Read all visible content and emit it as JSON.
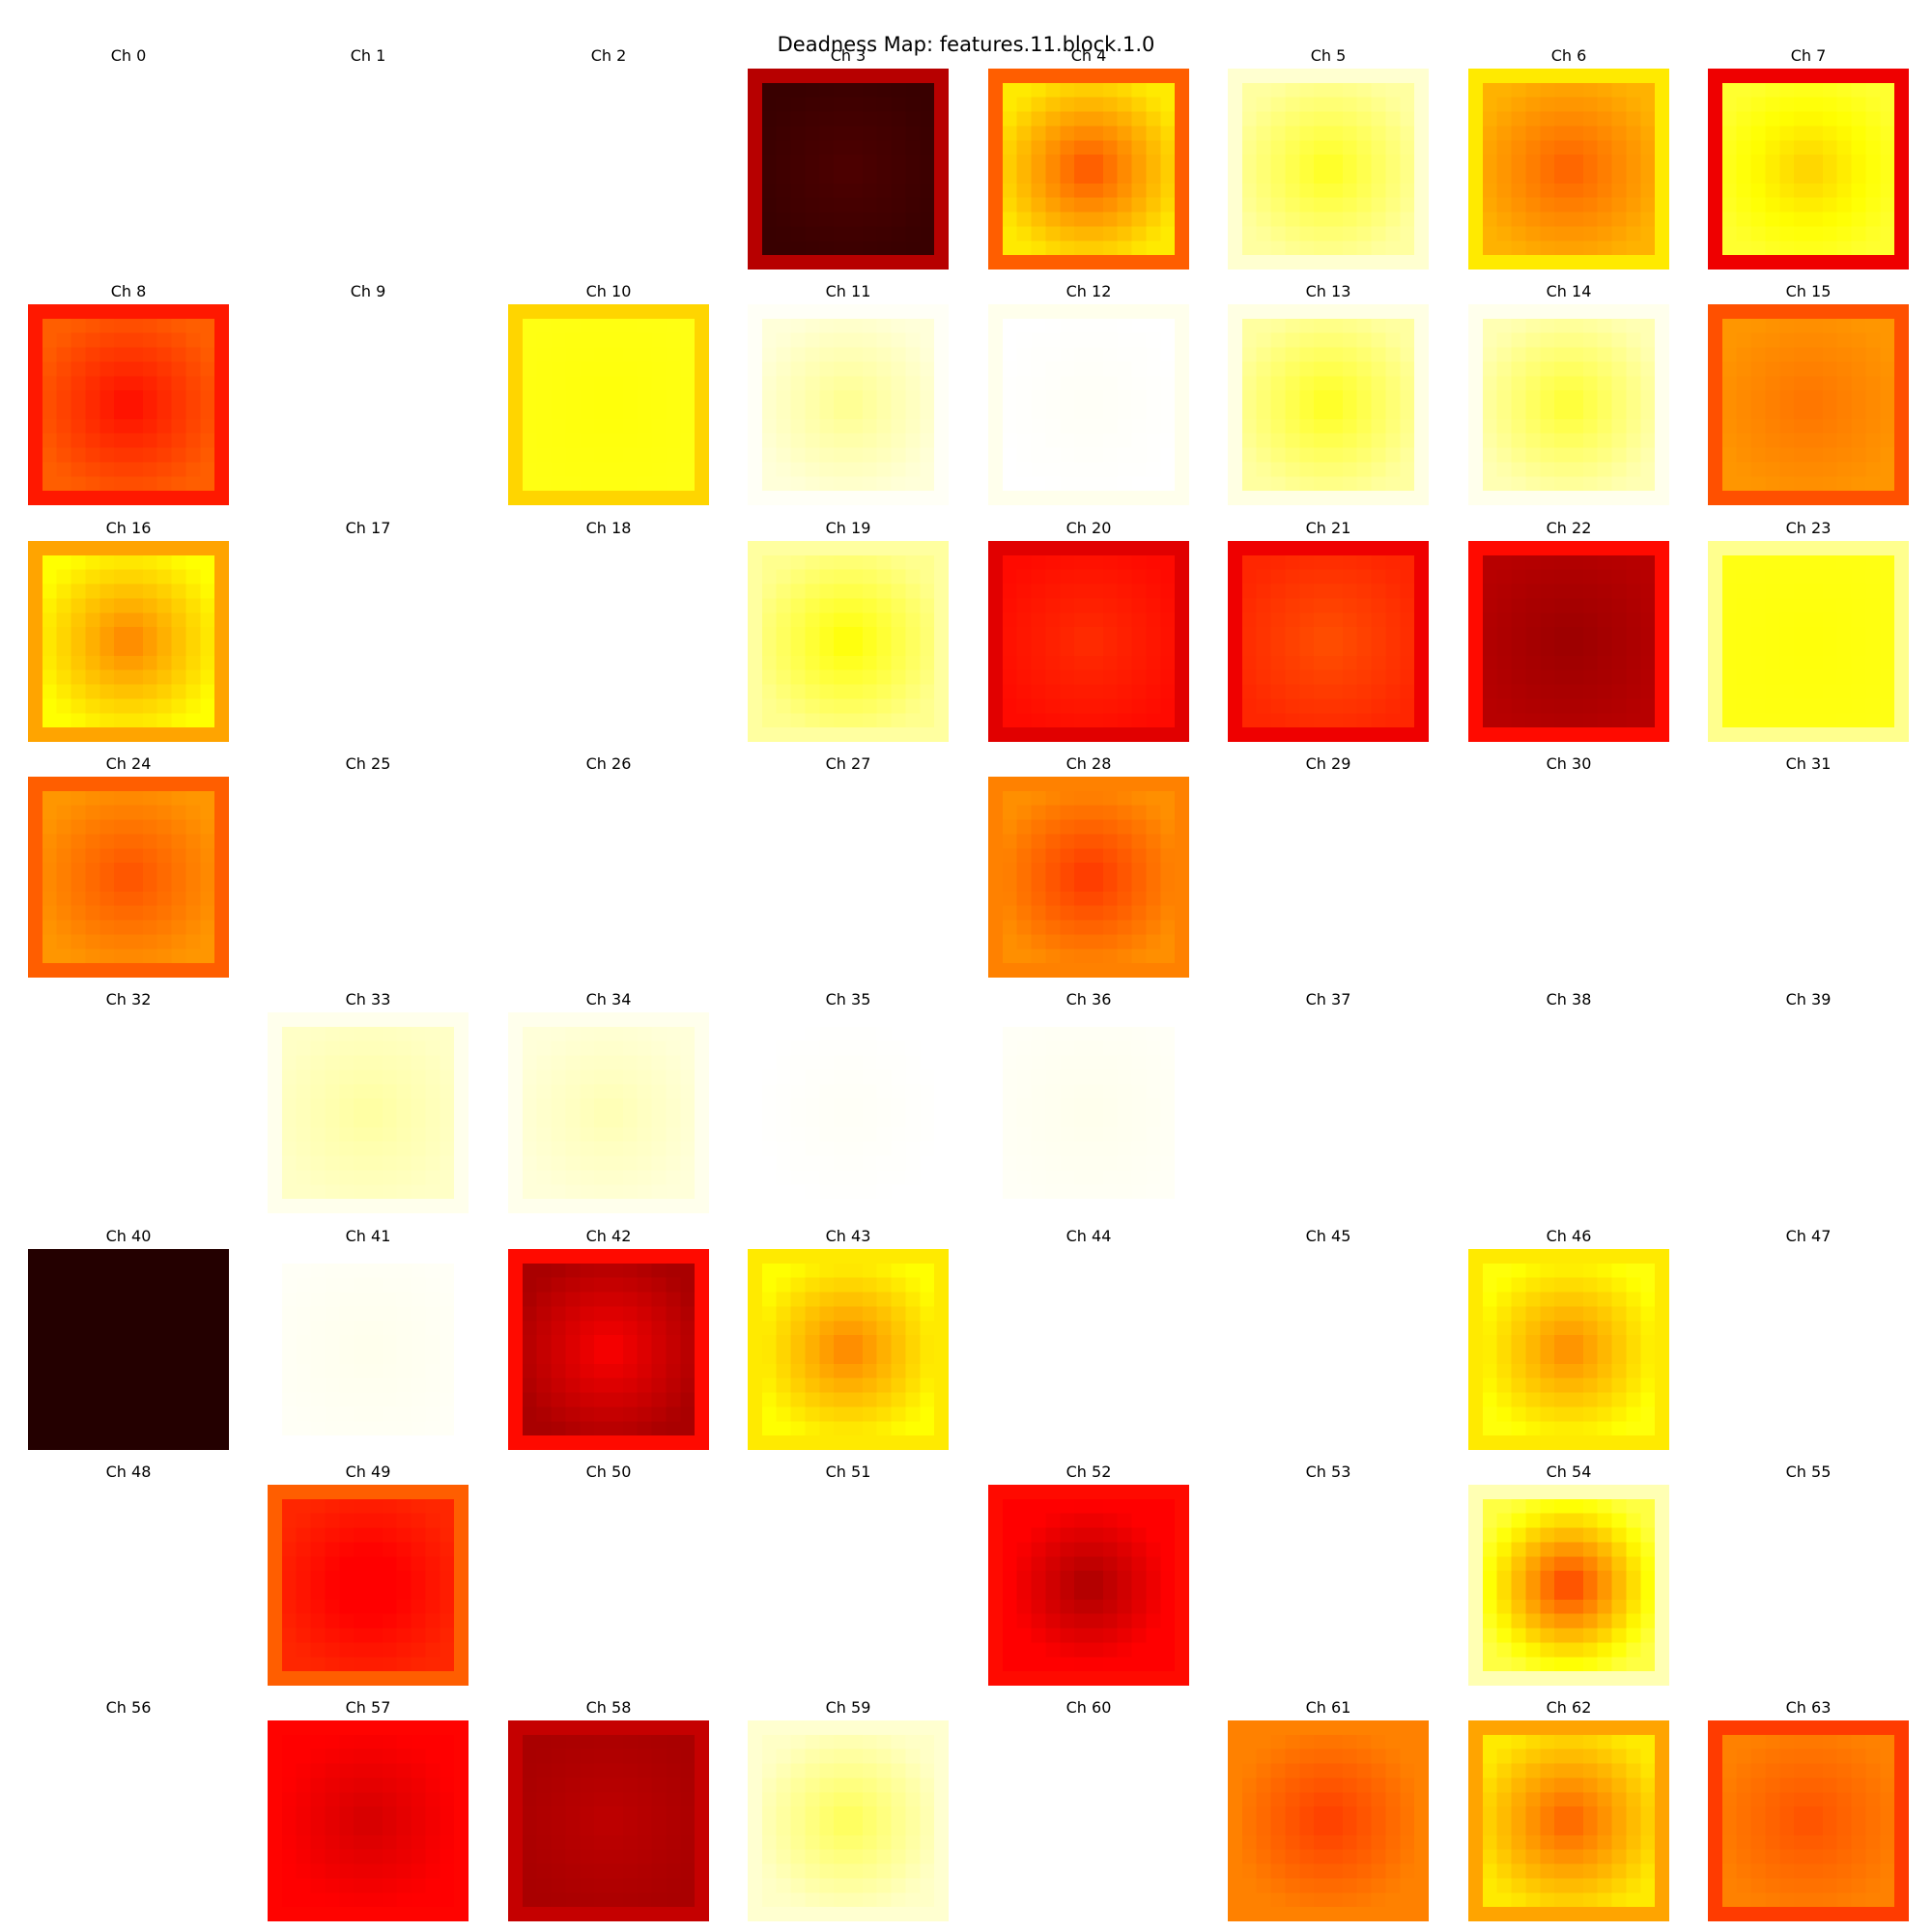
{
  "title": "Deadness Map: features.11.block.1.0",
  "chart_data": {
    "type": "heatmap",
    "title": "Deadness Map: features.11.block.1.0",
    "colormap": "hot_r",
    "grid_rows": 8,
    "grid_cols": 8,
    "cells_per_map": 14,
    "value_range": [
      0,
      1
    ],
    "panels": [
      {
        "label": "Ch 0",
        "center": 0.0,
        "edge": 0.0,
        "border": 0.0
      },
      {
        "label": "Ch 1",
        "center": 0.0,
        "edge": 0.0,
        "border": 0.0
      },
      {
        "label": "Ch 2",
        "center": 0.0,
        "edge": 0.0,
        "border": 0.0
      },
      {
        "label": "Ch 3",
        "center": 0.93,
        "edge": 0.96,
        "border": 0.78
      },
      {
        "label": "Ch 4",
        "center": 0.52,
        "edge": 0.3,
        "border": 0.5
      },
      {
        "label": "Ch 5",
        "center": 0.24,
        "edge": 0.1,
        "border": 0.05
      },
      {
        "label": "Ch 6",
        "center": 0.5,
        "edge": 0.38,
        "border": 0.3
      },
      {
        "label": "Ch 7",
        "center": 0.34,
        "edge": 0.22,
        "border": 0.7
      },
      {
        "label": "Ch 8",
        "center": 0.62,
        "edge": 0.5,
        "border": 0.6
      },
      {
        "label": "Ch 9",
        "center": 0.0,
        "edge": 0.0,
        "border": 0.0
      },
      {
        "label": "Ch 10",
        "center": 0.26,
        "edge": 0.25,
        "border": 0.33
      },
      {
        "label": "Ch 11",
        "center": 0.12,
        "edge": 0.04,
        "border": 0.01
      },
      {
        "label": "Ch 12",
        "center": 0.01,
        "edge": 0.0,
        "border": 0.02
      },
      {
        "label": "Ch 13",
        "center": 0.24,
        "edge": 0.1,
        "border": 0.03
      },
      {
        "label": "Ch 14",
        "center": 0.22,
        "edge": 0.08,
        "border": 0.02
      },
      {
        "label": "Ch 15",
        "center": 0.47,
        "edge": 0.42,
        "border": 0.52
      },
      {
        "label": "Ch 16",
        "center": 0.45,
        "edge": 0.27,
        "border": 0.4
      },
      {
        "label": "Ch 17",
        "center": 0.0,
        "edge": 0.0,
        "border": 0.0
      },
      {
        "label": "Ch 18",
        "center": 0.0,
        "edge": 0.0,
        "border": 0.0
      },
      {
        "label": "Ch 19",
        "center": 0.27,
        "edge": 0.12,
        "border": 0.1
      },
      {
        "label": "Ch 20",
        "center": 0.57,
        "edge": 0.62,
        "border": 0.72
      },
      {
        "label": "Ch 21",
        "center": 0.52,
        "edge": 0.58,
        "border": 0.7
      },
      {
        "label": "Ch 22",
        "center": 0.82,
        "edge": 0.78,
        "border": 0.62
      },
      {
        "label": "Ch 23",
        "center": 0.26,
        "edge": 0.25,
        "border": 0.12
      },
      {
        "label": "Ch 24",
        "center": 0.52,
        "edge": 0.42,
        "border": 0.5
      },
      {
        "label": "Ch 25",
        "center": 0.0,
        "edge": 0.0,
        "border": 0.0
      },
      {
        "label": "Ch 26",
        "center": 0.0,
        "edge": 0.0,
        "border": 0.0
      },
      {
        "label": "Ch 27",
        "center": 0.0,
        "edge": 0.0,
        "border": 0.0
      },
      {
        "label": "Ch 28",
        "center": 0.56,
        "edge": 0.43,
        "border": 0.45
      },
      {
        "label": "Ch 29",
        "center": 0.0,
        "edge": 0.0,
        "border": 0.0
      },
      {
        "label": "Ch 30",
        "center": 0.0,
        "edge": 0.0,
        "border": 0.0
      },
      {
        "label": "Ch 31",
        "center": 0.0,
        "edge": 0.0,
        "border": 0.0
      },
      {
        "label": "Ch 32",
        "center": 0.0,
        "edge": 0.0,
        "border": 0.0
      },
      {
        "label": "Ch 33",
        "center": 0.1,
        "edge": 0.06,
        "border": 0.02
      },
      {
        "label": "Ch 34",
        "center": 0.08,
        "edge": 0.04,
        "border": 0.02
      },
      {
        "label": "Ch 35",
        "center": 0.01,
        "edge": 0.0,
        "border": 0.0
      },
      {
        "label": "Ch 36",
        "center": 0.02,
        "edge": 0.01,
        "border": 0.0
      },
      {
        "label": "Ch 37",
        "center": 0.0,
        "edge": 0.0,
        "border": 0.0
      },
      {
        "label": "Ch 38",
        "center": 0.0,
        "edge": 0.0,
        "border": 0.0
      },
      {
        "label": "Ch 39",
        "center": 0.0,
        "edge": 0.0,
        "border": 0.0
      },
      {
        "label": "Ch 40",
        "center": 0.99,
        "edge": 0.99,
        "border": 0.99
      },
      {
        "label": "Ch 41",
        "center": 0.02,
        "edge": 0.01,
        "border": 0.0
      },
      {
        "label": "Ch 42",
        "center": 0.68,
        "edge": 0.8,
        "border": 0.62
      },
      {
        "label": "Ch 43",
        "center": 0.45,
        "edge": 0.27,
        "border": 0.3
      },
      {
        "label": "Ch 44",
        "center": 0.0,
        "edge": 0.0,
        "border": 0.0
      },
      {
        "label": "Ch 45",
        "center": 0.0,
        "edge": 0.0,
        "border": 0.0
      },
      {
        "label": "Ch 46",
        "center": 0.44,
        "edge": 0.26,
        "border": 0.3
      },
      {
        "label": "Ch 47",
        "center": 0.0,
        "edge": 0.0,
        "border": 0.0
      },
      {
        "label": "Ch 48",
        "center": 0.0,
        "edge": 0.0,
        "border": 0.0
      },
      {
        "label": "Ch 49",
        "center": 0.66,
        "edge": 0.58,
        "border": 0.5
      },
      {
        "label": "Ch 50",
        "center": 0.0,
        "edge": 0.0,
        "border": 0.0
      },
      {
        "label": "Ch 51",
        "center": 0.0,
        "edge": 0.0,
        "border": 0.0
      },
      {
        "label": "Ch 52",
        "center": 0.8,
        "edge": 0.65,
        "border": 0.62
      },
      {
        "label": "Ch 53",
        "center": 0.0,
        "edge": 0.0,
        "border": 0.0
      },
      {
        "label": "Ch 54",
        "center": 0.55,
        "edge": 0.2,
        "border": 0.08
      },
      {
        "label": "Ch 55",
        "center": 0.0,
        "edge": 0.0,
        "border": 0.0
      },
      {
        "label": "Ch 56",
        "center": 0.0,
        "edge": 0.0,
        "border": 0.0
      },
      {
        "label": "Ch 57",
        "center": 0.74,
        "edge": 0.67,
        "border": 0.63
      },
      {
        "label": "Ch 58",
        "center": 0.77,
        "edge": 0.8,
        "border": 0.76
      },
      {
        "label": "Ch 59",
        "center": 0.18,
        "edge": 0.06,
        "border": 0.05
      },
      {
        "label": "Ch 60",
        "center": 0.0,
        "edge": 0.0,
        "border": 0.0
      },
      {
        "label": "Ch 61",
        "center": 0.55,
        "edge": 0.45,
        "border": 0.45
      },
      {
        "label": "Ch 62",
        "center": 0.5,
        "edge": 0.3,
        "border": 0.4
      },
      {
        "label": "Ch 63",
        "center": 0.52,
        "edge": 0.45,
        "border": 0.55
      }
    ]
  }
}
